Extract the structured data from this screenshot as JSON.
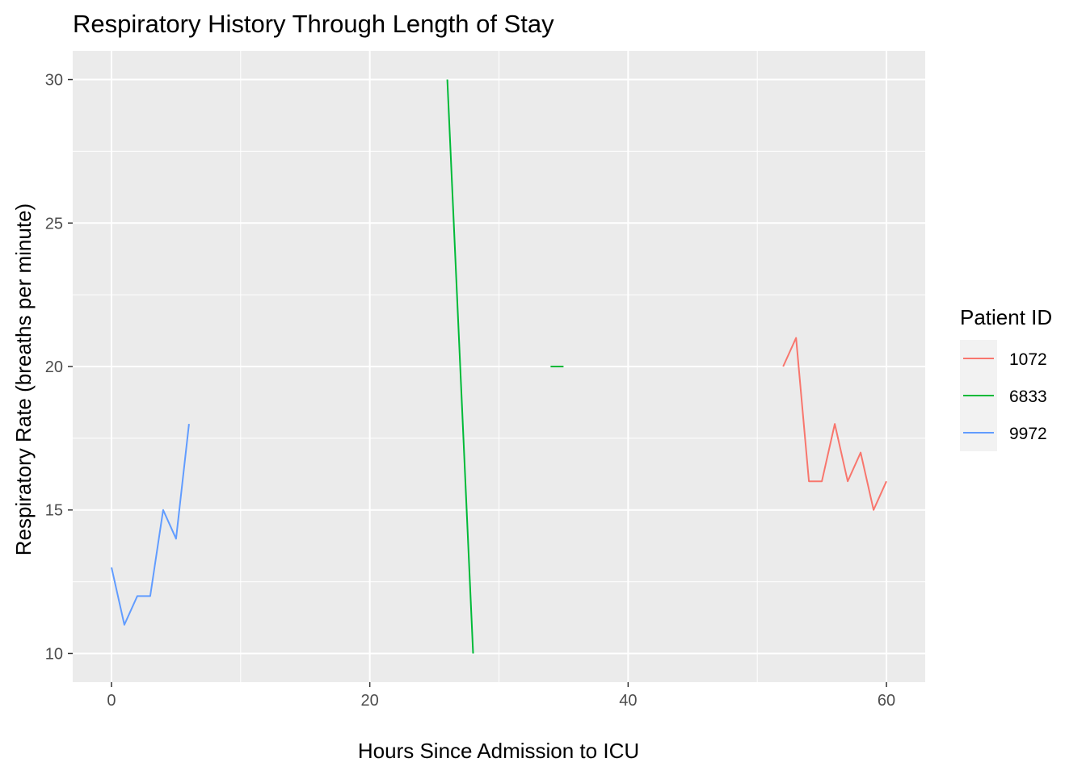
{
  "chart_data": {
    "type": "line",
    "title": "Respiratory History Through Length of Stay",
    "xlabel": "Hours Since Admission to ICU",
    "ylabel": "Respiratory Rate (breaths per minute)",
    "xlim": [
      -3,
      63
    ],
    "ylim": [
      9,
      31
    ],
    "x_ticks": [
      0,
      20,
      40,
      60
    ],
    "y_ticks": [
      10,
      15,
      20,
      25,
      30
    ],
    "grid": true,
    "legend": {
      "title": "Patient ID",
      "position": "right"
    },
    "series": [
      {
        "name": "1072",
        "color": "#F8766D",
        "segments": [
          {
            "x": [
              52,
              53,
              54,
              55,
              56,
              57,
              58,
              59,
              60
            ],
            "y": [
              20,
              21,
              16,
              16,
              18,
              16,
              17,
              15,
              16
            ]
          }
        ]
      },
      {
        "name": "6833",
        "color": "#00BA38",
        "segments": [
          {
            "x": [
              26,
              28
            ],
            "y": [
              30,
              10
            ]
          },
          {
            "x": [
              34,
              35
            ],
            "y": [
              20,
              20
            ]
          }
        ]
      },
      {
        "name": "9972",
        "color": "#619CFF",
        "segments": [
          {
            "x": [
              0,
              1,
              2,
              3,
              4,
              5,
              6
            ],
            "y": [
              13,
              11,
              12,
              12,
              15,
              14,
              18
            ]
          }
        ]
      }
    ]
  }
}
